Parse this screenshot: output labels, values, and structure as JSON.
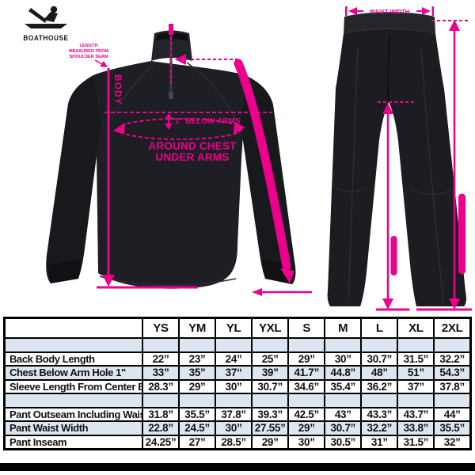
{
  "brand": {
    "name": "BOATHOUSE"
  },
  "colors": {
    "accent_pink": "#EC008C",
    "garment_dark": "#1D1F24",
    "table_alt_row_blue": "#DCE6F1",
    "table_border": "#000000",
    "page_background": "#FFFFFF"
  },
  "jacket_diagram": {
    "body_vertical_label": "BODY",
    "shoulder_note_lines": [
      "LENGTH",
      "MEASURED FROM",
      "SHOULDER SEAM"
    ],
    "below_arms_label": "1” BELOW ARMS",
    "around_chest_line1": "AROUND CHEST",
    "around_chest_line2": "UNDER ARMS"
  },
  "pants_diagram": {
    "waist_width_label": "WAIST WIDTH"
  },
  "size_table": {
    "columns": [
      "YS",
      "YM",
      "YL",
      "YXL",
      "S",
      "M",
      "L",
      "XL",
      "2XL"
    ],
    "rows": [
      {
        "label": "",
        "values": [
          "",
          "",
          "",
          "",
          "",
          "",
          "",
          "",
          ""
        ]
      },
      {
        "label": "Back Body Length",
        "values": [
          "22”",
          "23”",
          "24”",
          "25”",
          "29”",
          "30”",
          "30.7”",
          "31.5”",
          "32.2”"
        ]
      },
      {
        "label": "Chest Below Arm Hole 1\"",
        "values": [
          "33”",
          "35”",
          "37“",
          "39”",
          "41.7”",
          "44.8”",
          "48”",
          "51”",
          "54.3”"
        ]
      },
      {
        "label": "Sleeve Length From Center Back",
        "values": [
          "28.3”",
          "29”",
          "30”",
          "30.7”",
          "34.6”",
          "35.4”",
          "36.2”",
          "37”",
          "37.8”"
        ]
      },
      {
        "label": "",
        "values": [
          "",
          "",
          "",
          "",
          "",
          "",
          "",
          "",
          ""
        ]
      },
      {
        "label": "Pant Outseam Including Waist",
        "values": [
          "31.8”",
          "35.5”",
          "37.8”",
          "39.3”",
          "42.5”",
          "43”",
          "43.3”",
          "43.7”",
          "44”"
        ]
      },
      {
        "label": "Pant Waist Width",
        "values": [
          "22.8”",
          "24.5”",
          "30”",
          "27.55”",
          "29”",
          "30.7”",
          "32.2”",
          "33.8”",
          "35.5”"
        ]
      },
      {
        "label": "Pant Inseam",
        "values": [
          "24.25”",
          "27”",
          "28.5”",
          "29”",
          "30”",
          "30.5”",
          "31”",
          "31.5”",
          "32”"
        ]
      }
    ]
  }
}
